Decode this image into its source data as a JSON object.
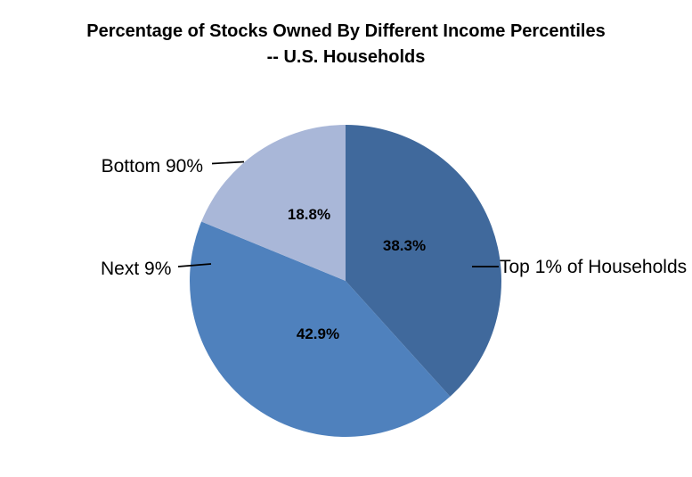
{
  "title": {
    "line1": "Percentage of Stocks Owned By Different Income Percentiles",
    "line2": "-- U.S. Households"
  },
  "chart_data": {
    "type": "pie",
    "title": "Percentage of Stocks Owned By Different Income Percentiles -- U.S. Households",
    "unit": "%",
    "start_angle_deg": 0,
    "direction": "clockwise",
    "legend": "none",
    "data_labels_position": "inside",
    "category_labels_position": "outside-with-leader-lines",
    "background_color": "#FFFFFF",
    "slices": [
      {
        "label": "Top 1% of Households",
        "value": 38.3,
        "pct_label": "38.3%",
        "color": "#40699C"
      },
      {
        "label": "Next 9%",
        "value": 42.9,
        "pct_label": "42.9%",
        "color": "#4F81BD"
      },
      {
        "label": "Bottom 90%",
        "value": 18.8,
        "pct_label": "18.8%",
        "color": "#A9B7D8"
      }
    ]
  }
}
